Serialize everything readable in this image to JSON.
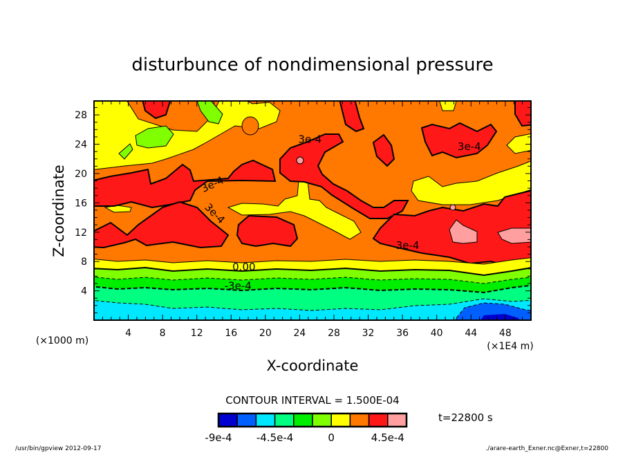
{
  "chart_data": {
    "type": "heatmap",
    "subtype": "filled-contour",
    "title": "disturbunce of nondimensional pressure",
    "xlabel": "X-coordinate",
    "ylabel": "Z-coordinate",
    "x_unit_left": "(×1000 m)",
    "x_unit_right": "(×1E4 m)",
    "xlim": [
      0,
      51
    ],
    "ylim": [
      0,
      29.9
    ],
    "xticks": [
      4,
      8,
      12,
      16,
      20,
      24,
      28,
      32,
      36,
      40,
      44,
      48
    ],
    "yticks": [
      4,
      8,
      12,
      16,
      20,
      24,
      28
    ],
    "contour_interval_label": "CONTOUR INTERVAL = 1.500E-04",
    "contour_labels": [
      "3e-4",
      "3e-4",
      "3e-4",
      "3e-4",
      "3e-4",
      "0.00",
      "-3e-4"
    ],
    "colorbar": {
      "levels": [
        -0.0009,
        -0.00075,
        -0.0006,
        -0.00045,
        -0.0003,
        -0.00015,
        0,
        0.00015,
        0.0003,
        0.00045,
        0.0006
      ],
      "colors": [
        "#0000d0",
        "#0060ff",
        "#00e8ff",
        "#00ff80",
        "#00ee00",
        "#80ff00",
        "#ffff00",
        "#ff7800",
        "#ff1818",
        "#ff9f9f"
      ],
      "tick_labels": [
        {
          "level": -0.0009,
          "text": "-9e-4"
        },
        {
          "level": -0.00045,
          "text": "-4.5e-4"
        },
        {
          "level": 0,
          "text": "0"
        },
        {
          "level": 0.00045,
          "text": "4.5e-4"
        }
      ]
    },
    "time_label": "t=22800 s"
  },
  "footer": {
    "left": "/usr/bin/gpview   2012-09-17",
    "right": "./arare-earth_Exner.nc@Exner,t=22800"
  }
}
